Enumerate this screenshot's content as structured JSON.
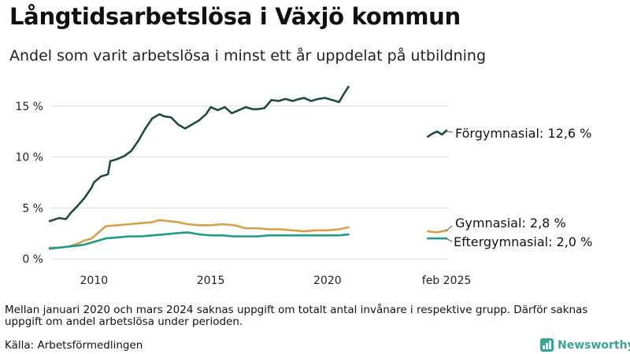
{
  "title": "Långtidsarbetslösa i Växjö kommun",
  "subtitle": "Andel som varit arbetslösa i minst ett år uppdelat på utbildning",
  "footnote": "Mellan januari 2020 och mars 2024 saknas uppgift om totalt antal invånare i respektive grupp. Därför saknas uppgift om andel arbetslösa under perioden.",
  "source": "Källa: Arbetsförmedlingen",
  "brand": "Newsworthy",
  "colors": {
    "forgymnasial": "#1f4a44",
    "gymnasial": "#d4a04a",
    "eftergymnasial": "#1f9a8a",
    "brand": "#3aa394"
  },
  "chart_data": {
    "type": "line",
    "xlim": [
      2008.1,
      2025.2
    ],
    "ylim": [
      0,
      17
    ],
    "x_ticks": [
      {
        "x": 2010,
        "label": "2010"
      },
      {
        "x": 2015,
        "label": "2015"
      },
      {
        "x": 2020,
        "label": "2020"
      },
      {
        "x": 2025.1,
        "label": "feb 2025"
      }
    ],
    "y_ticks": [
      {
        "y": 0,
        "label": "0 %"
      },
      {
        "y": 5,
        "label": "5 %"
      },
      {
        "y": 10,
        "label": "10 %"
      },
      {
        "y": 15,
        "label": "15 %"
      }
    ],
    "series": [
      {
        "key": "forgymnasial",
        "label": "Förgymnasial: 12,6 %",
        "segments": [
          {
            "x": [
              2008.1,
              2008.5,
              2008.8,
              2009.0,
              2009.3,
              2009.6,
              2009.9,
              2010.0,
              2010.3,
              2010.6,
              2010.7,
              2011.0,
              2011.3,
              2011.6,
              2011.9,
              2012.2,
              2012.5,
              2012.8,
              2013.0,
              2013.3,
              2013.6,
              2013.9,
              2014.2,
              2014.5,
              2014.8,
              2015.0,
              2015.3,
              2015.6,
              2015.9,
              2016.2,
              2016.5,
              2016.8,
              2017.0,
              2017.3,
              2017.6,
              2017.9,
              2018.2,
              2018.5,
              2018.8,
              2019.0,
              2019.3,
              2019.6,
              2019.9,
              2020.2,
              2020.5,
              2020.7,
              2020.9
            ],
            "y": [
              3.7,
              4.0,
              3.9,
              4.5,
              5.2,
              6.0,
              7.0,
              7.5,
              8.1,
              8.3,
              9.6,
              9.8,
              10.1,
              10.6,
              11.6,
              12.8,
              13.8,
              14.2,
              14.0,
              13.9,
              13.2,
              12.8,
              13.2,
              13.6,
              14.2,
              14.9,
              14.6,
              14.9,
              14.3,
              14.6,
              14.9,
              14.7,
              14.7,
              14.8,
              15.6,
              15.5,
              15.7,
              15.5,
              15.7,
              15.8,
              15.5,
              15.7,
              15.8,
              15.6,
              15.4,
              16.2,
              16.9
            ]
          },
          {
            "x": [
              2024.3,
              2024.5,
              2024.7,
              2024.9,
              2025.1
            ],
            "y": [
              12.0,
              12.3,
              12.5,
              12.2,
              12.6
            ]
          }
        ]
      },
      {
        "key": "gymnasial",
        "label": "Gymnasial:  2,8 %",
        "segments": [
          {
            "x": [
              2008.1,
              2008.5,
              2008.9,
              2009.3,
              2009.6,
              2009.9,
              2010.2,
              2010.5,
              2011.0,
              2011.5,
              2012.0,
              2012.5,
              2012.8,
              2013.2,
              2013.6,
              2014.0,
              2014.5,
              2015.0,
              2015.5,
              2016.0,
              2016.5,
              2017.0,
              2017.5,
              2018.0,
              2018.5,
              2019.0,
              2019.5,
              2020.0,
              2020.5,
              2020.9
            ],
            "y": [
              1.1,
              1.1,
              1.2,
              1.5,
              1.8,
              2.0,
              2.6,
              3.2,
              3.3,
              3.4,
              3.5,
              3.6,
              3.8,
              3.7,
              3.6,
              3.4,
              3.3,
              3.3,
              3.4,
              3.3,
              3.0,
              3.0,
              2.9,
              2.9,
              2.8,
              2.7,
              2.8,
              2.8,
              2.9,
              3.1
            ]
          },
          {
            "x": [
              2024.3,
              2024.7,
              2025.1
            ],
            "y": [
              2.7,
              2.6,
              2.8
            ]
          }
        ]
      },
      {
        "key": "eftergymnasial",
        "label": "Eftergymnasial:  2,0 %",
        "segments": [
          {
            "x": [
              2008.1,
              2008.5,
              2008.9,
              2009.3,
              2009.6,
              2009.9,
              2010.2,
              2010.5,
              2011.0,
              2011.5,
              2012.0,
              2012.5,
              2013.0,
              2013.5,
              2014.0,
              2014.5,
              2015.0,
              2015.5,
              2016.0,
              2016.5,
              2017.0,
              2017.5,
              2018.0,
              2018.5,
              2019.0,
              2019.5,
              2020.0,
              2020.5,
              2020.9
            ],
            "y": [
              1.0,
              1.1,
              1.2,
              1.3,
              1.4,
              1.6,
              1.8,
              2.0,
              2.1,
              2.2,
              2.2,
              2.3,
              2.4,
              2.5,
              2.6,
              2.4,
              2.3,
              2.3,
              2.2,
              2.2,
              2.2,
              2.3,
              2.3,
              2.3,
              2.3,
              2.3,
              2.3,
              2.3,
              2.4
            ]
          },
          {
            "x": [
              2024.3,
              2024.7,
              2025.1
            ],
            "y": [
              2.0,
              2.0,
              2.0
            ]
          }
        ]
      }
    ]
  }
}
